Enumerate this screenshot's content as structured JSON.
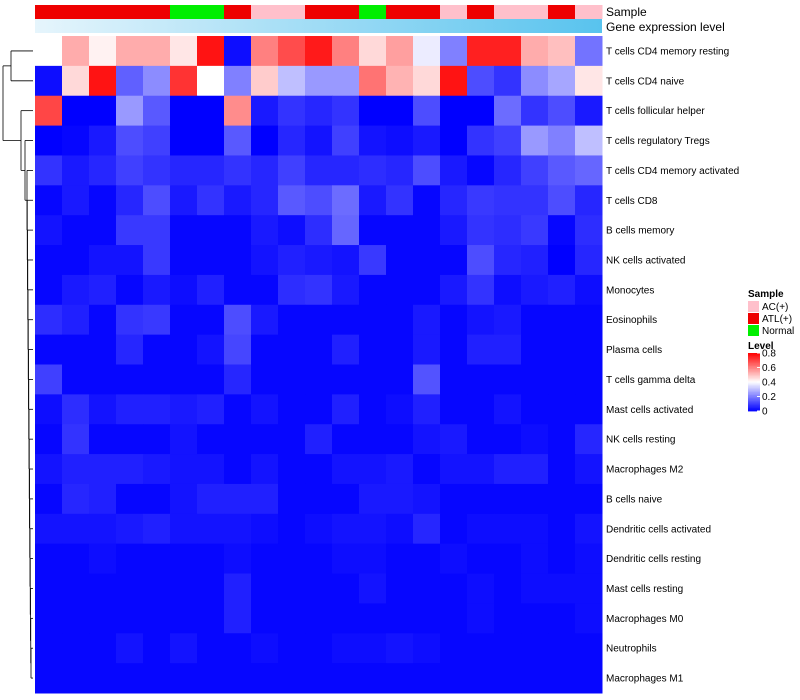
{
  "chart_data": {
    "type": "heatmap",
    "row_labels": [
      "T cells CD4 memory resting",
      "T cells CD4 naive",
      "T cells follicular helper",
      "T cells regulatory  Tregs",
      "T cells CD4 memory activated",
      "T cells CD8",
      "B cells memory",
      "NK cells activated",
      "Monocytes",
      "Eosinophils",
      "Plasma cells",
      "T cells gamma delta",
      "Mast cells activated",
      "NK cells resting",
      "Macrophages M2",
      "B cells naive",
      "Dendritic cells activated",
      "Dendritic cells resting",
      "Mast cells resting",
      "Macrophages M0",
      "Neutrophils",
      "Macrophages M1"
    ],
    "sample_groups": [
      "ATL(+)",
      "ATL(+)",
      "ATL(+)",
      "ATL(+)",
      "ATL(+)",
      "Normal",
      "Normal",
      "ATL(+)",
      "AC(+)",
      "AC(+)",
      "ATL(+)",
      "ATL(+)",
      "Normal",
      "ATL(+)",
      "ATL(+)",
      "AC(+)",
      "ATL(+)",
      "AC(+)",
      "AC(+)",
      "ATL(+)",
      "AC(+)"
    ],
    "track_labels": [
      "Sample",
      "Gene expression level"
    ],
    "sample_colors": {
      "AC(+)": "#ffc0cb",
      "ATL(+)": "#ee0000",
      "Normal": "#00ee00"
    },
    "expression_level_track": {
      "start_color": "#e6f5fc",
      "end_color": "#58c3ee"
    },
    "values": [
      [
        0.4,
        0.53,
        0.42,
        0.53,
        0.53,
        0.44,
        0.77,
        0.02,
        0.6,
        0.68,
        0.76,
        0.6,
        0.46,
        0.55,
        0.37,
        0.2,
        0.75,
        0.75,
        0.53,
        0.5,
        0.18
      ],
      [
        0.02,
        0.46,
        0.77,
        0.15,
        0.22,
        0.72,
        0.4,
        0.2,
        0.48,
        0.3,
        0.24,
        0.24,
        0.62,
        0.52,
        0.46,
        0.77,
        0.12,
        0.08,
        0.22,
        0.26,
        0.44
      ],
      [
        0.69,
        0.0,
        0.0,
        0.24,
        0.14,
        0.0,
        0.0,
        0.58,
        0.04,
        0.08,
        0.06,
        0.08,
        0.0,
        0.0,
        0.12,
        0.0,
        0.0,
        0.17,
        0.08,
        0.12,
        0.04
      ],
      [
        0.0,
        0.01,
        0.04,
        0.12,
        0.1,
        0.0,
        0.0,
        0.14,
        0.0,
        0.06,
        0.03,
        0.1,
        0.03,
        0.02,
        0.04,
        0.0,
        0.08,
        0.1,
        0.24,
        0.2,
        0.3
      ],
      [
        0.08,
        0.04,
        0.06,
        0.1,
        0.08,
        0.06,
        0.06,
        0.08,
        0.06,
        0.1,
        0.06,
        0.06,
        0.07,
        0.06,
        0.12,
        0.04,
        0.01,
        0.06,
        0.1,
        0.14,
        0.16
      ],
      [
        0.01,
        0.04,
        0.01,
        0.06,
        0.12,
        0.04,
        0.08,
        0.04,
        0.06,
        0.14,
        0.12,
        0.17,
        0.04,
        0.08,
        0.01,
        0.06,
        0.09,
        0.08,
        0.08,
        0.12,
        0.06
      ],
      [
        0.03,
        0.01,
        0.01,
        0.09,
        0.09,
        0.01,
        0.01,
        0.01,
        0.04,
        0.02,
        0.07,
        0.16,
        0.01,
        0.01,
        0.01,
        0.04,
        0.08,
        0.07,
        0.09,
        0.01,
        0.07
      ],
      [
        0.01,
        0.01,
        0.03,
        0.03,
        0.09,
        0.01,
        0.01,
        0.01,
        0.03,
        0.05,
        0.04,
        0.03,
        0.09,
        0.01,
        0.01,
        0.01,
        0.12,
        0.06,
        0.05,
        0.0,
        0.06
      ],
      [
        0.01,
        0.04,
        0.05,
        0.01,
        0.04,
        0.02,
        0.05,
        0.01,
        0.01,
        0.07,
        0.08,
        0.04,
        0.01,
        0.01,
        0.01,
        0.04,
        0.08,
        0.02,
        0.04,
        0.05,
        0.02
      ],
      [
        0.07,
        0.05,
        0.01,
        0.08,
        0.09,
        0.01,
        0.01,
        0.12,
        0.04,
        0.01,
        0.01,
        0.01,
        0.01,
        0.01,
        0.04,
        0.01,
        0.03,
        0.04,
        0.01,
        0.01,
        0.01
      ],
      [
        0.01,
        0.01,
        0.01,
        0.06,
        0.01,
        0.01,
        0.03,
        0.11,
        0.01,
        0.01,
        0.01,
        0.05,
        0.01,
        0.01,
        0.04,
        0.01,
        0.05,
        0.05,
        0.01,
        0.01,
        0.01
      ],
      [
        0.1,
        0.01,
        0.01,
        0.01,
        0.01,
        0.01,
        0.01,
        0.06,
        0.01,
        0.01,
        0.01,
        0.01,
        0.01,
        0.01,
        0.13,
        0.01,
        0.01,
        0.01,
        0.01,
        0.01,
        0.01
      ],
      [
        0.02,
        0.07,
        0.03,
        0.05,
        0.05,
        0.04,
        0.05,
        0.01,
        0.03,
        0.01,
        0.01,
        0.05,
        0.01,
        0.02,
        0.05,
        0.01,
        0.01,
        0.03,
        0.01,
        0.01,
        0.01
      ],
      [
        0.01,
        0.08,
        0.01,
        0.01,
        0.01,
        0.03,
        0.01,
        0.01,
        0.01,
        0.01,
        0.05,
        0.01,
        0.01,
        0.01,
        0.03,
        0.04,
        0.01,
        0.01,
        0.02,
        0.01,
        0.06
      ],
      [
        0.03,
        0.05,
        0.05,
        0.05,
        0.04,
        0.03,
        0.03,
        0.01,
        0.03,
        0.01,
        0.01,
        0.03,
        0.03,
        0.04,
        0.01,
        0.03,
        0.03,
        0.05,
        0.05,
        0.01,
        0.03
      ],
      [
        0.01,
        0.06,
        0.05,
        0.01,
        0.01,
        0.03,
        0.05,
        0.05,
        0.05,
        0.01,
        0.01,
        0.01,
        0.04,
        0.04,
        0.03,
        0.01,
        0.01,
        0.01,
        0.01,
        0.01,
        0.01
      ],
      [
        0.03,
        0.03,
        0.03,
        0.04,
        0.05,
        0.03,
        0.03,
        0.03,
        0.02,
        0.01,
        0.02,
        0.03,
        0.03,
        0.02,
        0.06,
        0.01,
        0.02,
        0.02,
        0.02,
        0.01,
        0.03
      ],
      [
        0.01,
        0.01,
        0.02,
        0.01,
        0.01,
        0.01,
        0.01,
        0.02,
        0.01,
        0.01,
        0.01,
        0.02,
        0.02,
        0.01,
        0.01,
        0.02,
        0.01,
        0.01,
        0.02,
        0.01,
        0.02
      ],
      [
        0.01,
        0.01,
        0.01,
        0.01,
        0.01,
        0.01,
        0.01,
        0.05,
        0.01,
        0.01,
        0.01,
        0.01,
        0.03,
        0.01,
        0.01,
        0.01,
        0.02,
        0.01,
        0.02,
        0.02,
        0.02
      ],
      [
        0.01,
        0.01,
        0.01,
        0.01,
        0.01,
        0.01,
        0.01,
        0.05,
        0.01,
        0.01,
        0.01,
        0.01,
        0.01,
        0.01,
        0.01,
        0.01,
        0.02,
        0.01,
        0.01,
        0.01,
        0.02
      ],
      [
        0.01,
        0.01,
        0.01,
        0.03,
        0.01,
        0.03,
        0.01,
        0.01,
        0.02,
        0.01,
        0.01,
        0.02,
        0.02,
        0.03,
        0.02,
        0.01,
        0.01,
        0.01,
        0.01,
        0.01,
        0.01
      ],
      [
        0.01,
        0.01,
        0.01,
        0.01,
        0.01,
        0.01,
        0.01,
        0.01,
        0.01,
        0.01,
        0.01,
        0.01,
        0.01,
        0.01,
        0.01,
        0.01,
        0.01,
        0.01,
        0.01,
        0.01,
        0.01
      ]
    ],
    "color_scale": {
      "stops": [
        {
          "value": 0.0,
          "color": "#0000ff"
        },
        {
          "value": 0.4,
          "color": "#ffffff"
        },
        {
          "value": 0.8,
          "color": "#ff0000"
        }
      ]
    },
    "legend": {
      "sample": {
        "title": "Sample",
        "entries": [
          "AC(+)",
          "ATL(+)",
          "Normal"
        ]
      },
      "level": {
        "title": "Level",
        "ticks": [
          "0.8",
          "0.6",
          "0.4",
          "0.2",
          "0"
        ],
        "tick_values": [
          0.8,
          0.6,
          0.4,
          0.2,
          0.0
        ],
        "range": [
          0,
          0.8
        ]
      }
    },
    "row_dendrogram": true,
    "column_dendrogram": false
  }
}
